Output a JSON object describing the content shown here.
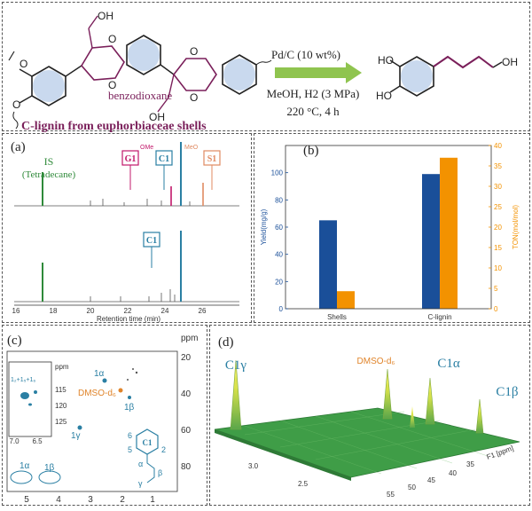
{
  "scheme": {
    "substrate_caption": "C-lignin from euphorbiaceae shells",
    "benzodioxane_label": "benzodioxane",
    "oh_label": "OH",
    "ho_label": "HO",
    "o_label": "O",
    "conditions": [
      "Pd/C (10 wt%)",
      "MeOH, H2 (3 MPa)",
      "220 °C, 4 h"
    ]
  },
  "panel_a": {
    "panel_label": "(a)",
    "is_label": "IS",
    "is_sublabel": "(Tetradecane)",
    "compound_labels": [
      "G1",
      "C1",
      "S1",
      "C1"
    ],
    "ome_label": "OMe",
    "meo_label": "MeO",
    "xlabel": "Retention time (min)",
    "xticks": [
      "16",
      "18",
      "20",
      "22",
      "24",
      "26"
    ]
  },
  "panel_c": {
    "panel_label": "(c)",
    "ppm_label": "ppm",
    "yticks": [
      "20",
      "40",
      "60",
      "80"
    ],
    "xticks": [
      "5",
      "4",
      "3",
      "2",
      "1"
    ],
    "inset_yticks": [
      "115",
      "120",
      "125"
    ],
    "inset_xticks": [
      "7.0",
      "6.5",
      "ppm"
    ],
    "inset_label": "1₂+1₅+1₆",
    "dmso_label": "DMSO-d₆",
    "peak_labels": [
      "1α",
      "1β",
      "1γ",
      "1α",
      "1β"
    ],
    "struct_labels": [
      "C1",
      "6",
      "5",
      "2",
      "α",
      "β",
      "γ"
    ]
  },
  "panel_d": {
    "panel_label": "(d)",
    "peak_labels": [
      "C1γ",
      "DMSO-d₆",
      "C1α",
      "C1β"
    ],
    "ticks": [
      "3.0",
      "2.5",
      "35",
      "40",
      "45",
      "50",
      "55"
    ],
    "axis_label": "F1 [ppm]"
  },
  "colors": {
    "blue": "#1a4f99",
    "orange": "#f39200",
    "green": "#2f8a3a",
    "teal": "#2a7fa3",
    "purple": "#7a1f5a",
    "arrow": "#8fc44f"
  },
  "chart_data": {
    "type": "bar",
    "panel_label": "(b)",
    "categories": [
      "Shells",
      "C-lignin"
    ],
    "series": [
      {
        "name": "Yield",
        "axis": "left",
        "color": "#1a4f99",
        "values": [
          65,
          99
        ]
      },
      {
        "name": "TON",
        "axis": "right",
        "color": "#f39200",
        "values": [
          4.3,
          37
        ]
      }
    ],
    "ylabel": "Yield(mg/g)",
    "y2label": "TON(mol/mol)",
    "ylim": [
      0,
      120
    ],
    "y2lim": [
      0,
      40
    ],
    "yticks": [
      0,
      20,
      40,
      60,
      80,
      100
    ],
    "y2ticks": [
      0,
      5,
      10,
      15,
      20,
      25,
      30,
      35,
      40
    ],
    "grid": false,
    "legend": "none"
  }
}
